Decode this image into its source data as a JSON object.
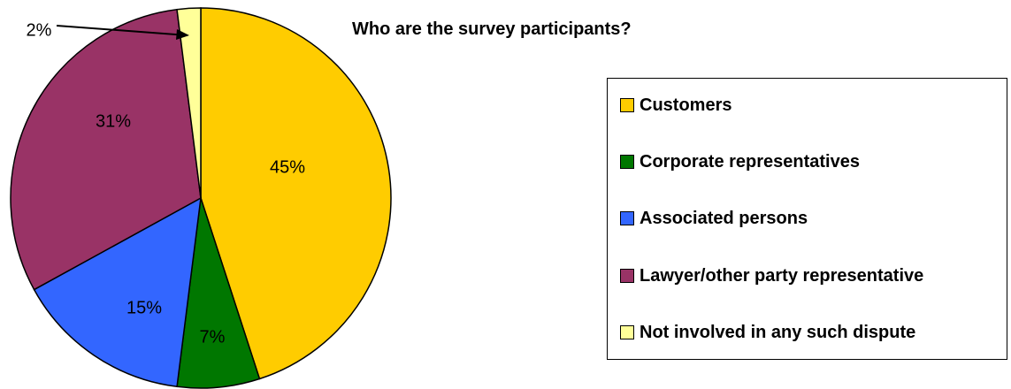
{
  "chart_data": {
    "type": "pie",
    "title": "Who are the survey participants?",
    "slices": [
      {
        "name": "Customers",
        "value": 45,
        "label": "45%",
        "color": "#FFCC00"
      },
      {
        "name": "Corporate representatives",
        "value": 7,
        "label": "7%",
        "color": "#007700"
      },
      {
        "name": "Associated persons",
        "value": 15,
        "label": "15%",
        "color": "#3366FF"
      },
      {
        "name": "Lawyer/other party representative",
        "value": 31,
        "label": "31%",
        "color": "#993366"
      },
      {
        "name": "Not involved in any such dispute",
        "value": 2,
        "label": "2%",
        "color": "#FFFF99"
      }
    ],
    "legend_position": "right"
  }
}
